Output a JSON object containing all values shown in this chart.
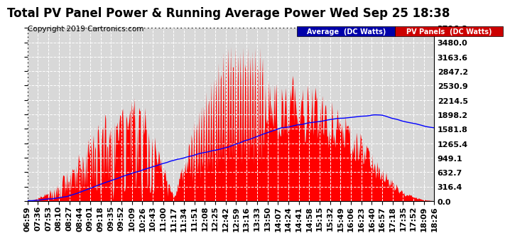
{
  "title": "Total PV Panel Power & Running Average Power Wed Sep 25 18:38",
  "copyright": "Copyright 2019 Cartronics.com",
  "legend_labels": [
    "Average  (DC Watts)",
    "PV Panels  (DC Watts)"
  ],
  "ymax": 3796.3,
  "yticks": [
    0.0,
    316.4,
    632.7,
    949.1,
    1265.4,
    1581.8,
    1898.2,
    2214.5,
    2530.9,
    2847.2,
    3163.6,
    3480.0,
    3796.3
  ],
  "ytick_labels": [
    "0.0",
    "316.4",
    "632.7",
    "949.1",
    "1265.4",
    "1581.8",
    "1898.2",
    "2214.5",
    "2530.9",
    "2847.2",
    "3163.6",
    "3480.0",
    "3796.3"
  ],
  "xtick_labels": [
    "06:59",
    "07:36",
    "07:53",
    "08:10",
    "08:27",
    "08:44",
    "09:01",
    "09:18",
    "09:35",
    "09:52",
    "10:09",
    "10:26",
    "10:43",
    "11:00",
    "11:17",
    "11:34",
    "11:51",
    "12:08",
    "12:25",
    "12:42",
    "12:59",
    "13:16",
    "13:33",
    "13:50",
    "14:07",
    "14:24",
    "14:41",
    "14:58",
    "15:15",
    "15:32",
    "15:49",
    "16:06",
    "16:23",
    "16:40",
    "16:57",
    "17:18",
    "17:35",
    "17:52",
    "18:09",
    "18:26"
  ],
  "bg_color": "#ffffff",
  "plot_bg_color": "#d8d8d8",
  "grid_color": "#ffffff",
  "pv_color": "#ff0000",
  "avg_color": "#0000ff",
  "title_fontsize": 12,
  "copyright_fontsize": 7.5,
  "tick_fontsize": 8
}
